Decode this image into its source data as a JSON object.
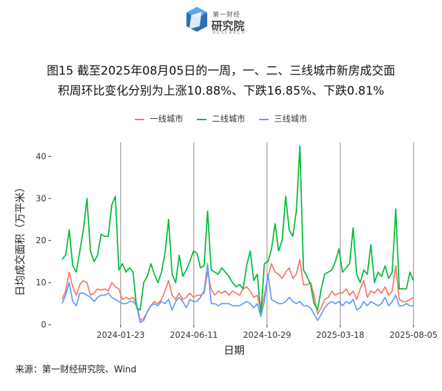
{
  "logo": {
    "top_text": "第一财经",
    "main_text": "研究院",
    "sub_text": "RESEARCH"
  },
  "title": {
    "line1": "图15  截至2025年08月05日的一周，一、二、三线城市新房成交面",
    "line2": "积周环比变化分别为上涨10.88%、下跌16.85%、下跌0.81%"
  },
  "source": "来源：第一财经研究院、Wind",
  "colors": {
    "tier1": "#F8766D",
    "tier2": "#00BA38",
    "tier3": "#619CFF",
    "vline": "#888888"
  },
  "chart_data": {
    "type": "line",
    "xlabel": "日期",
    "ylabel": "日均成交面积（万平米）",
    "ylim": [
      0,
      44
    ],
    "yticks": [
      0,
      10,
      20,
      30,
      40
    ],
    "xlim": [
      0,
      100
    ],
    "xticks": [
      {
        "label": "2024-01-23",
        "x": 19
      },
      {
        "label": "2024-06-11",
        "x": 39
      },
      {
        "label": "2024-10-29",
        "x": 59
      },
      {
        "label": "2025-03-18",
        "x": 79
      },
      {
        "label": "2025-08-05",
        "x": 99
      }
    ],
    "vlines": [
      19,
      39,
      59,
      79,
      99
    ],
    "grid": true,
    "legend_position": "top",
    "series": [
      {
        "name": "一线城市",
        "color_key": "tier1",
        "values": [
          6.0,
          8.0,
          12.5,
          9.0,
          7.0,
          9.5,
          10.5,
          10.0,
          7.0,
          7.5,
          8.5,
          8.2,
          8.5,
          8.0,
          10.0,
          9.0,
          8.5,
          6.0,
          6.5,
          6.0,
          6.5,
          5.0,
          1.0,
          1.5,
          3.0,
          4.5,
          5.5,
          5.0,
          6.0,
          8.0,
          10.5,
          7.0,
          6.0,
          7.5,
          6.0,
          6.5,
          7.5,
          6.5,
          7.0,
          7.0,
          7.5,
          12.5,
          8.5,
          7.0,
          8.0,
          7.5,
          8.0,
          7.0,
          8.0,
          7.5,
          7.0,
          8.5,
          9.0,
          8.0,
          6.5,
          7.0,
          3.5,
          7.0,
          11.5,
          14.5,
          12.5,
          12.0,
          11.0,
          12.5,
          13.5,
          11.0,
          12.0,
          15.5,
          9.5,
          9.5,
          10.0,
          7.0,
          2.5,
          4.0,
          6.0,
          6.5,
          8.0,
          7.0,
          7.5,
          7.5,
          8.5,
          7.0,
          8.0,
          6.0,
          8.5,
          10.5,
          6.5,
          8.0,
          7.5,
          8.5,
          7.5,
          9.0,
          7.0,
          8.0,
          14.0,
          6.0,
          5.5,
          5.5,
          6.0,
          6.5
        ],
        "total_points": 100
      },
      {
        "name": "二线城市",
        "color_key": "tier2",
        "values": [
          15.5,
          16.5,
          22.5,
          14.0,
          12.5,
          17.5,
          22.5,
          30.0,
          17.5,
          15.0,
          16.5,
          21.5,
          21.0,
          21.0,
          28.5,
          30.5,
          13.0,
          14.5,
          12.5,
          13.5,
          12.5,
          4.0,
          3.5,
          10.0,
          11.5,
          14.5,
          12.0,
          10.0,
          12.5,
          17.0,
          25.0,
          12.0,
          10.0,
          16.5,
          11.5,
          13.0,
          15.0,
          17.5,
          17.0,
          13.5,
          14.0,
          27.0,
          13.0,
          12.5,
          12.0,
          13.5,
          12.5,
          11.5,
          10.0,
          9.0,
          9.5,
          8.5,
          14.0,
          17.5,
          10.5,
          12.0,
          2.5,
          14.5,
          15.0,
          18.0,
          24.0,
          17.5,
          20.0,
          30.5,
          22.5,
          21.0,
          27.0,
          42.5,
          13.0,
          11.5,
          9.5,
          5.0,
          3.5,
          8.5,
          12.0,
          12.5,
          13.0,
          15.0,
          18.0,
          12.5,
          13.5,
          14.5,
          23.0,
          12.0,
          10.0,
          13.0,
          12.0,
          19.0,
          10.0,
          12.5,
          11.5,
          14.0,
          11.0,
          12.5,
          27.5,
          8.5,
          8.5,
          8.5,
          12.5,
          10.5
        ],
        "total_points": 100
      },
      {
        "name": "三线城市",
        "color_key": "tier3",
        "values": [
          5.0,
          7.0,
          10.0,
          5.5,
          4.5,
          7.5,
          7.5,
          7.0,
          6.5,
          5.5,
          6.5,
          7.0,
          7.0,
          7.5,
          6.5,
          6.0,
          5.5,
          5.0,
          5.0,
          5.5,
          5.5,
          4.5,
          0.5,
          1.0,
          3.0,
          4.5,
          5.0,
          4.5,
          5.5,
          5.0,
          6.0,
          3.5,
          5.5,
          6.5,
          5.5,
          4.0,
          6.0,
          5.5,
          5.5,
          6.5,
          8.0,
          14.5,
          5.0,
          5.0,
          4.5,
          5.0,
          5.0,
          5.0,
          4.5,
          4.5,
          4.5,
          5.0,
          5.5,
          5.0,
          4.0,
          5.0,
          2.0,
          5.5,
          12.0,
          6.0,
          5.5,
          5.0,
          5.0,
          5.5,
          6.5,
          5.5,
          5.0,
          5.5,
          4.5,
          4.5,
          4.0,
          2.5,
          1.0,
          2.5,
          4.0,
          5.0,
          5.5,
          5.0,
          5.5,
          4.5,
          5.5,
          5.0,
          6.0,
          3.5,
          4.0,
          5.5,
          4.5,
          5.5,
          5.0,
          4.5,
          5.0,
          6.5,
          4.5,
          5.5,
          7.0,
          4.5,
          4.5,
          5.0,
          4.5,
          4.5
        ],
        "total_points": 100
      }
    ]
  }
}
